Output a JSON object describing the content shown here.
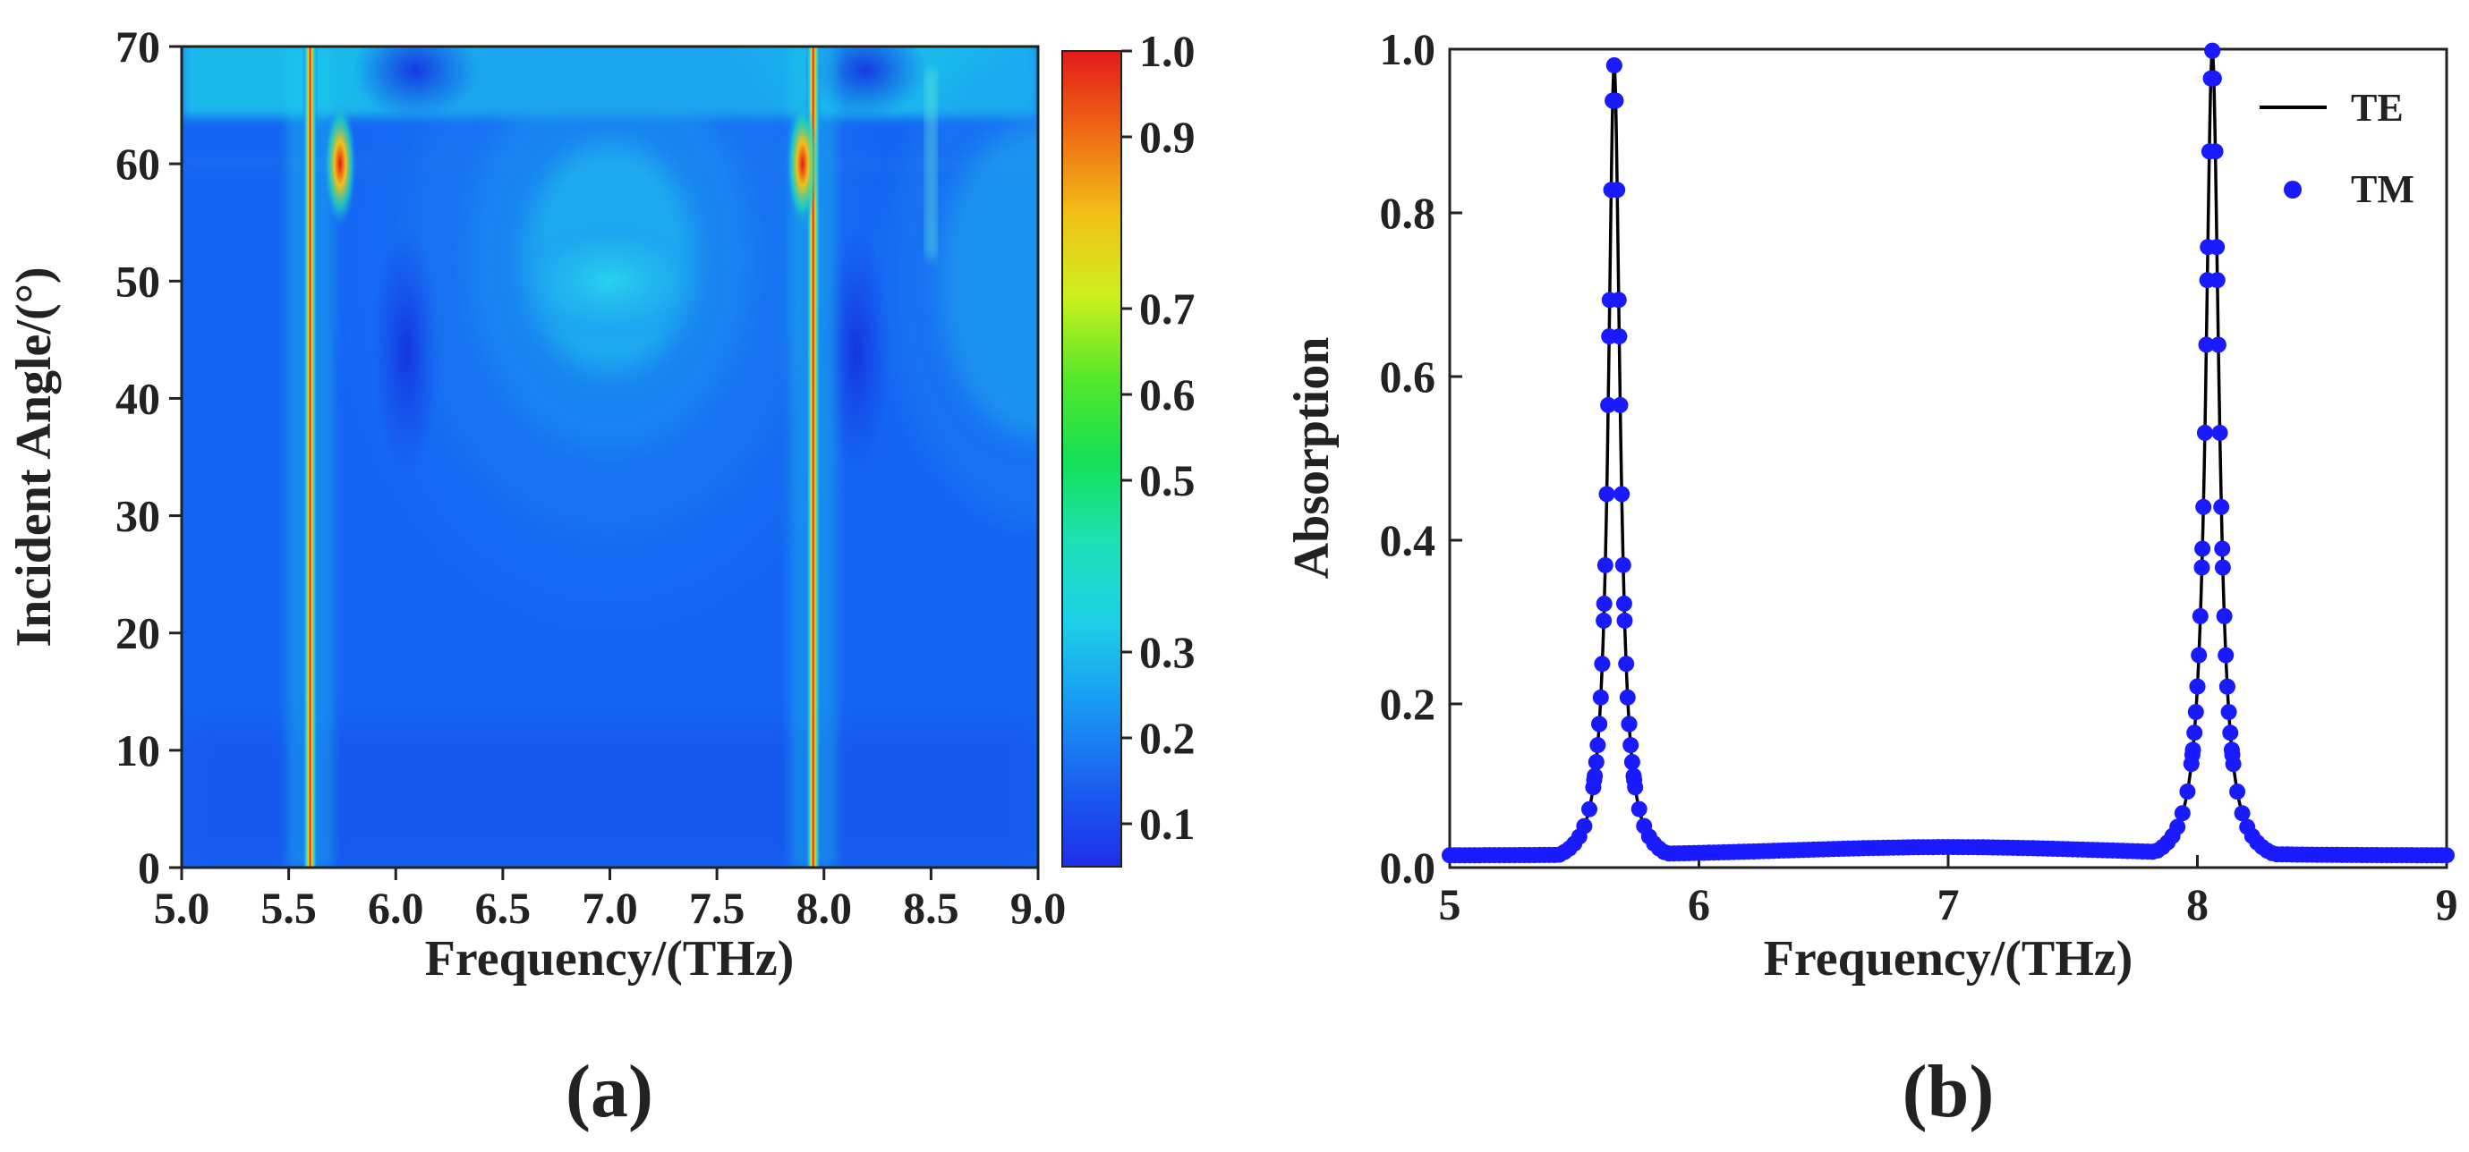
{
  "chart_data": [
    {
      "type": "heatmap",
      "panel_label": "(a)",
      "xlabel": "Frequency/(THz)",
      "ylabel": "Incident Angle/(°)",
      "xlim": [
        5.0,
        9.0
      ],
      "ylim": [
        0,
        70
      ],
      "x_ticks": [
        "5.0",
        "5.5",
        "6.0",
        "6.5",
        "7.0",
        "7.5",
        "8.0",
        "8.5",
        "9.0"
      ],
      "y_ticks": [
        "0",
        "10",
        "20",
        "30",
        "40",
        "50",
        "60",
        "70"
      ],
      "colorbar": {
        "range": [
          0.05,
          1.0
        ],
        "ticks": [
          "0.1",
          "0.2",
          "0.3",
          "0.5",
          "0.6",
          "0.7",
          "0.9",
          "1.0"
        ],
        "tick_values": [
          0.1,
          0.2,
          0.3,
          0.5,
          0.6,
          0.7,
          0.9,
          1.0
        ]
      },
      "features": {
        "absorption_lines_thz": [
          5.6,
          7.95
        ],
        "split_band_near_60deg_thz": [
          5.74,
          7.9
        ],
        "weak_line_thz": 8.5,
        "low_absorption_lobes_thz": [
          6.05,
          8.15
        ],
        "arc_center_thz": 7.0,
        "outer_arc_center_thz": 9.0
      }
    },
    {
      "type": "line",
      "panel_label": "(b)",
      "xlabel": "Frequency/(THz)",
      "ylabel": "Absorption",
      "xlim": [
        5,
        9
      ],
      "ylim": [
        0,
        1.0
      ],
      "x_ticks": [
        "5",
        "6",
        "7",
        "8",
        "9"
      ],
      "y_ticks": [
        "0.0",
        "0.2",
        "0.4",
        "0.6",
        "0.8",
        "1.0"
      ],
      "legend_position": "top-right",
      "series": [
        {
          "name": "TE",
          "style": "line",
          "color": "#000000"
        },
        {
          "name": "TM",
          "style": "markers",
          "color": "#1a1aff"
        }
      ],
      "peaks": [
        {
          "frequency_thz": 5.66,
          "absorption": 0.98,
          "half_width_thz": 0.028
        },
        {
          "frequency_thz": 8.06,
          "absorption": 0.998,
          "half_width_thz": 0.032
        }
      ],
      "baseline": {
        "edge_level": 0.015,
        "mid_level": 0.025
      }
    }
  ],
  "colors": {
    "heatmap_base": "#1565f2",
    "te_line": "#000000",
    "tm_markers": "#1a1aff"
  }
}
